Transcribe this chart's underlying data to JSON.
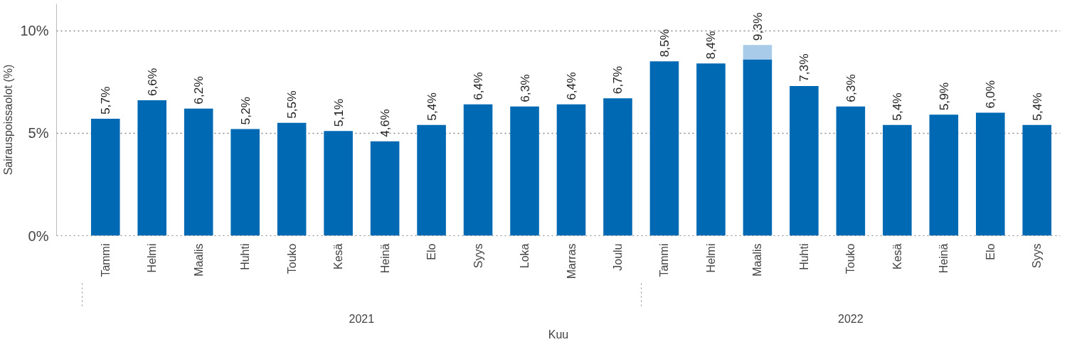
{
  "chart_data": {
    "type": "bar",
    "stacked": true,
    "xlabel": "Kuu",
    "ylabel": "Sairauspoissaolot (%)",
    "categories": [
      "Tammi",
      "Helmi",
      "Maalis",
      "Huhti",
      "Touko",
      "Kesä",
      "Heinä",
      "Elo",
      "Syys",
      "Loka",
      "Marras",
      "Joulu",
      "Tammi",
      "Helmi",
      "Maalis",
      "Huhti",
      "Touko",
      "Kesä",
      "Heinä",
      "Elo",
      "Syys"
    ],
    "series": [
      {
        "color": "#0069b4",
        "values": [
          5.7,
          6.6,
          6.2,
          5.2,
          5.5,
          5.1,
          4.6,
          5.4,
          6.4,
          6.3,
          6.4,
          6.7,
          8.5,
          8.4,
          8.6,
          7.3,
          6.3,
          5.4,
          5.9,
          6.0,
          5.4
        ]
      },
      {
        "color": "#a8cbe9",
        "values": [
          null,
          null,
          null,
          null,
          null,
          null,
          null,
          null,
          null,
          null,
          null,
          null,
          null,
          null,
          0.7,
          null,
          null,
          null,
          null,
          null,
          null
        ]
      }
    ],
    "totals": [
      "5,7%",
      "6,6%",
      "6,2%",
      "5,2%",
      "5,5%",
      "5,1%",
      "4,6%",
      "5,4%",
      "6,4%",
      "6,3%",
      "6,4%",
      "6,7%",
      "8,5%",
      "8,4%",
      "9,3%",
      "7,3%",
      "6,3%",
      "5,4%",
      "5,9%",
      "6,0%",
      "5,4%"
    ],
    "ylim": [
      0,
      11.3
    ],
    "yticks": [
      {
        "value": 0,
        "label": "0%"
      },
      {
        "value": 5,
        "label": "5%"
      },
      {
        "value": 10,
        "label": "10%"
      }
    ],
    "grid": "y",
    "annotations": [
      "2021",
      "2022"
    ]
  }
}
